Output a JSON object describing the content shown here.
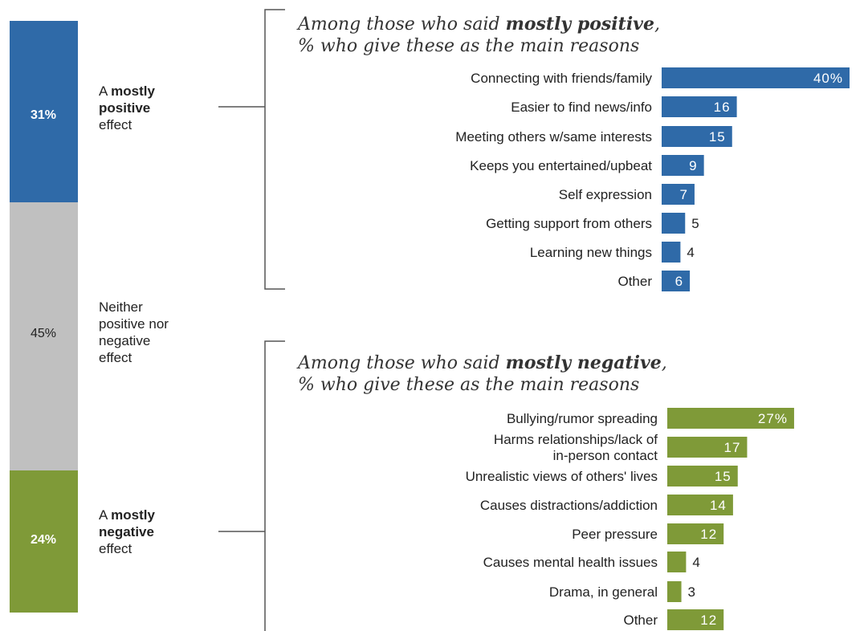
{
  "colors": {
    "positive": "#2f6aa8",
    "neutral": "#c0c0c0",
    "negative": "#7f9a38",
    "bracket": "#555555",
    "text": "#222222",
    "bar_label_light": "#ffffff",
    "bar_label_dark": "#222222"
  },
  "overall": {
    "positive": {
      "value": "31%",
      "label_pre": "A ",
      "label_bold_1": "mostly",
      "label_bold_2": "positive",
      "label_post": "effect"
    },
    "neutral": {
      "value": "45%",
      "label_lines": [
        "Neither",
        "positive nor",
        "negative",
        "effect"
      ]
    },
    "negative": {
      "value": "24%",
      "label_pre": "A ",
      "label_bold_1": "mostly",
      "label_bold_2": "negative",
      "label_post": "effect"
    }
  },
  "positive_panel": {
    "title_pre": "Among those who said ",
    "title_bold": "mostly positive",
    "title_post": ",",
    "subtitle": "% who give these as the main reasons"
  },
  "negative_panel": {
    "title_pre": "Among those who said ",
    "title_bold": "mostly negative",
    "title_post": ",",
    "subtitle": "% who give these as the main reasons"
  },
  "chart_data": [
    {
      "type": "bar",
      "orientation": "horizontal",
      "title": "Among those who said mostly positive, % who give these as the main reasons",
      "categories": [
        "Connecting with friends/family",
        "Easier to find news/info",
        "Meeting others w/same interests",
        "Keeps you entertained/upbeat",
        "Self expression",
        "Getting support from others",
        "Learning new things",
        "Other"
      ],
      "values": [
        40,
        16,
        15,
        9,
        7,
        5,
        4,
        6
      ],
      "value_labels": [
        "40%",
        "16",
        "15",
        "9",
        "7",
        "5",
        "4",
        "6"
      ]
    },
    {
      "type": "bar",
      "orientation": "horizontal",
      "title": "Among those who said mostly negative, % who give these as the main reasons",
      "categories": [
        "Bullying/rumor spreading",
        [
          "Harms relationships/lack of",
          "in-person contact"
        ],
        "Unrealistic views of others' lives",
        "Causes distractions/addiction",
        "Peer pressure",
        "Causes mental health issues",
        "Drama, in general",
        "Other"
      ],
      "values": [
        27,
        17,
        15,
        14,
        12,
        4,
        3,
        12
      ],
      "value_labels": [
        "27%",
        "17",
        "15",
        "14",
        "12",
        "4",
        "3",
        "12"
      ]
    },
    {
      "type": "bar",
      "orientation": "stacked-vertical",
      "categories": [
        "A mostly positive effect",
        "Neither positive nor negative effect",
        "A mostly negative effect"
      ],
      "values": [
        31,
        45,
        24
      ],
      "value_labels": [
        "31%",
        "45%",
        "24%"
      ]
    }
  ]
}
